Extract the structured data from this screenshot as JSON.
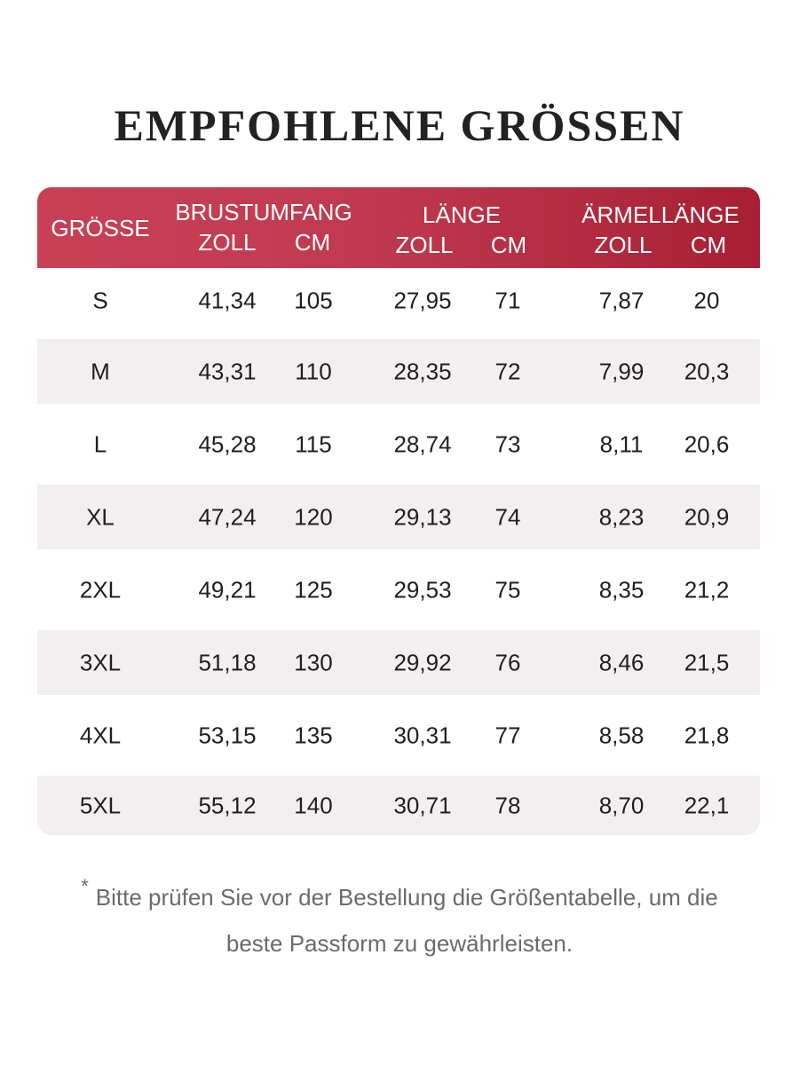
{
  "title": "EMPFOHLENE GRÖSSEN",
  "colors": {
    "header": "#bf3a50",
    "shaded_row": "#f3eff0",
    "text": "#1f1f1f",
    "note": "#6b6b6b"
  },
  "header": {
    "size": "GRÖSSE",
    "chest": "BRUSTUMFANG",
    "length": "LÄNGE",
    "sleeve": "ÄRMELLÄNGE",
    "chest_inch": "ZOLL",
    "chest_cm": "CM",
    "length_inch": "ZOLL",
    "length_cm": "CM",
    "sleeve_inch": "ZOLL",
    "sleeve_cm": "CM"
  },
  "rows": [
    [
      "S",
      "41,34",
      "105",
      "27,95",
      "71",
      "7,87",
      "20"
    ],
    [
      "M",
      "43,31",
      "110",
      "28,35",
      "72",
      "7,99",
      "20,3"
    ],
    [
      "L",
      "45,28",
      "115",
      "28,74",
      "73",
      "8,11",
      "20,6"
    ],
    [
      "XL",
      "47,24",
      "120",
      "29,13",
      "74",
      "8,23",
      "20,9"
    ],
    [
      "2XL",
      "49,21",
      "125",
      "29,53",
      "75",
      "8,35",
      "21,2"
    ],
    [
      "3XL",
      "51,18",
      "130",
      "29,92",
      "76",
      "8,46",
      "21,5"
    ],
    [
      "4XL",
      "53,15",
      "135",
      "30,31",
      "77",
      "8,58",
      "21,8"
    ],
    [
      "5XL",
      "55,12",
      "140",
      "30,71",
      "78",
      "8,70",
      "22,1"
    ]
  ],
  "note": {
    "asterisk": "*",
    "line1": "Bitte prüfen Sie vor der Bestellung die Größentabelle, um die",
    "line2": "beste Passform zu gewährleisten."
  }
}
